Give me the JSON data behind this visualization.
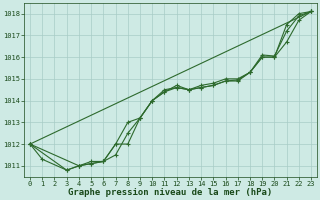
{
  "x": [
    0,
    1,
    2,
    3,
    4,
    5,
    6,
    7,
    8,
    9,
    10,
    11,
    12,
    13,
    14,
    15,
    16,
    17,
    18,
    19,
    20,
    21,
    22,
    23
  ],
  "series": [
    [
      1012.0,
      1011.3,
      null,
      1010.8,
      1011.0,
      1011.1,
      1011.2,
      1012.0,
      1012.0,
      1013.2,
      1014.0,
      1014.4,
      1014.6,
      1014.5,
      1014.6,
      1014.7,
      1014.9,
      1014.9,
      1015.3,
      1016.0,
      1016.0,
      1017.5,
      1018.0,
      1018.1
    ],
    [
      1012.0,
      null,
      null,
      1010.8,
      1011.0,
      1011.1,
      1011.2,
      1011.5,
      1012.5,
      1013.2,
      1014.0,
      1014.5,
      1014.6,
      1014.5,
      1014.6,
      1014.7,
      1014.9,
      1014.95,
      1015.3,
      1016.1,
      1016.05,
      1017.2,
      1017.9,
      1018.1
    ],
    [
      1012.0,
      null,
      null,
      null,
      1011.0,
      1011.2,
      1011.2,
      1012.0,
      1013.0,
      1013.2,
      1014.0,
      1014.4,
      1014.7,
      1014.5,
      1014.7,
      1014.8,
      1015.0,
      1015.0,
      1015.3,
      1016.0,
      1016.0,
      1016.7,
      1017.7,
      1018.1
    ],
    [
      1012.0,
      null,
      null,
      null,
      null,
      null,
      null,
      null,
      null,
      null,
      null,
      null,
      null,
      null,
      null,
      null,
      null,
      null,
      null,
      null,
      null,
      null,
      null,
      1018.1
    ]
  ],
  "line_color": "#2d6a2d",
  "marker": "+",
  "marker_size": 3,
  "marker_edge_width": 0.8,
  "line_width": 0.8,
  "background_color": "#ceeae4",
  "grid_color": "#a8ccc6",
  "text_color": "#1a4a1a",
  "xlabel": "Graphe pression niveau de la mer (hPa)",
  "xlim": [
    -0.5,
    23.5
  ],
  "ylim": [
    1010.5,
    1018.5
  ],
  "yticks": [
    1011,
    1012,
    1013,
    1014,
    1015,
    1016,
    1017,
    1018
  ],
  "xticks": [
    0,
    1,
    2,
    3,
    4,
    5,
    6,
    7,
    8,
    9,
    10,
    11,
    12,
    13,
    14,
    15,
    16,
    17,
    18,
    19,
    20,
    21,
    22,
    23
  ],
  "tick_fontsize": 5,
  "xlabel_fontsize": 6.5
}
